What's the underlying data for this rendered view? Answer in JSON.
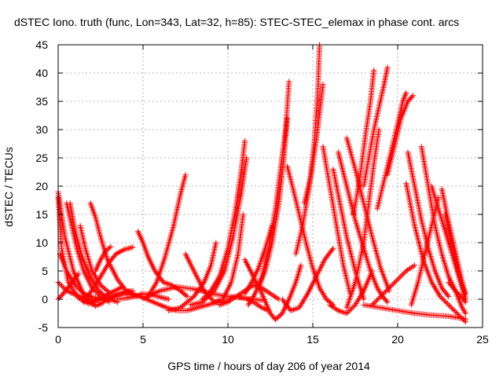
{
  "chart_data": {
    "type": "scatter",
    "title": "dSTEC Iono. truth (func, Lon=343, Lat=32, h=85): STEC-STEC_elemax in phase cont. arcs",
    "xlabel": "GPS time / hours of day 206 of year 2014",
    "ylabel": "dSTEC  / TECUs",
    "xlim": [
      0,
      25
    ],
    "ylim": [
      -5,
      45
    ],
    "x_ticks": [
      0,
      5,
      10,
      15,
      20,
      25
    ],
    "y_ticks": [
      -5,
      0,
      5,
      10,
      15,
      20,
      25,
      30,
      35,
      40,
      45
    ],
    "grid": true,
    "marker": "+",
    "color": "#ff0000",
    "series": [
      {
        "x": [
          0.0,
          0.4,
          0.9,
          1.4,
          1.8,
          2.2,
          2.6,
          3.0
        ],
        "y": [
          19,
          11,
          5,
          1.5,
          -0.5,
          -1.2,
          -0.7,
          0.5
        ]
      },
      {
        "x": [
          0.0,
          0.2,
          0.6,
          1.2,
          1.8,
          2.5,
          3.2,
          3.8
        ],
        "y": [
          18,
          9,
          3,
          0.2,
          -0.8,
          0.2,
          1.3,
          2.2
        ]
      },
      {
        "x": [
          0.1,
          0.5,
          1.0,
          1.5,
          2.0,
          2.6,
          3.2,
          3.8,
          4.4
        ],
        "y": [
          8,
          5,
          2.5,
          1,
          0.4,
          0.2,
          0.5,
          1.0,
          1.5
        ]
      },
      {
        "x": [
          0.0,
          0.5,
          1.0,
          1.6,
          2.2,
          2.9,
          3.6,
          4.2
        ],
        "y": [
          3,
          1.5,
          0.8,
          0.2,
          -0.3,
          0.1,
          0.9,
          1.5
        ]
      },
      {
        "x": [
          0.0,
          0.3,
          0.7,
          1.2
        ],
        "y": [
          0,
          1,
          2.5,
          4.5
        ]
      },
      {
        "x": [
          0.5,
          0.8,
          1.1,
          1.5,
          2.0,
          2.5,
          3.0
        ],
        "y": [
          17,
          13,
          9,
          5,
          2,
          0.5,
          -0.5
        ]
      },
      {
        "x": [
          0.7,
          1.0,
          1.4,
          1.9,
          2.4,
          2.9,
          3.5
        ],
        "y": [
          17,
          12,
          7.5,
          4,
          1.5,
          0.2,
          -0.5
        ]
      },
      {
        "x": [
          1.3,
          1.6,
          2.0,
          2.5,
          3.0
        ],
        "y": [
          13,
          9,
          5,
          2.5,
          1.2
        ]
      },
      {
        "x": [
          1.9,
          2.2,
          2.5,
          2.9,
          3.5,
          4.0,
          4.5
        ],
        "y": [
          17,
          14.5,
          11,
          7,
          3.5,
          1.5,
          0.8
        ]
      },
      {
        "x": [
          1.5,
          1.8,
          2.2,
          2.6,
          3.0,
          3.4,
          3.9,
          4.4
        ],
        "y": [
          -0.5,
          0.8,
          2.5,
          4.5,
          6.5,
          8,
          8.8,
          9.2
        ]
      },
      {
        "x": [
          2.2,
          2.5,
          2.8,
          3.1
        ],
        "y": [
          5,
          7,
          8.5,
          9.3
        ]
      },
      {
        "x": [
          4.7,
          5.0,
          5.3,
          5.7,
          6.2,
          6.7,
          7.2,
          7.6
        ],
        "y": [
          12,
          10,
          7.5,
          5,
          3,
          2.5,
          1.5,
          0.5
        ]
      },
      {
        "x": [
          5.3,
          5.8,
          6.3,
          6.8,
          7.2,
          7.5
        ],
        "y": [
          0.5,
          3,
          7.5,
          13,
          18.5,
          22
        ]
      },
      {
        "x": [
          3.5,
          4.0,
          4.5,
          5.0,
          5.5,
          6.0,
          6.5
        ],
        "y": [
          0,
          0.2,
          0.5,
          1,
          0.8,
          0.4,
          0
        ]
      },
      {
        "x": [
          4.0,
          4.8,
          5.6,
          6.4,
          7.0,
          7.6,
          8.2,
          8.8,
          9.4,
          10.0
        ],
        "y": [
          1,
          0.5,
          -0.5,
          -1.5,
          -2,
          -2,
          -1.5,
          -1,
          -0.5,
          -0.3
        ]
      },
      {
        "x": [
          5.0,
          6.0,
          7.0,
          8.0,
          9.0,
          10.0,
          11.0,
          12.0
        ],
        "y": [
          0.2,
          1.5,
          2.2,
          1.8,
          1,
          0.5,
          0.2,
          -0.2
        ]
      },
      {
        "x": [
          6.5,
          7.2,
          8.0,
          8.6,
          9.0,
          9.3
        ],
        "y": [
          -2,
          -1.5,
          0.5,
          3,
          6,
          10
        ]
      },
      {
        "x": [
          7.5,
          8.0,
          8.6,
          9.2,
          9.7,
          10.2,
          10.6,
          10.9
        ],
        "y": [
          8,
          5,
          1.5,
          -0.5,
          0,
          3,
          8,
          15
        ]
      },
      {
        "x": [
          7.8,
          8.5,
          9.2,
          9.8,
          10.3,
          10.8,
          11.1
        ],
        "y": [
          -1,
          -0.5,
          1.5,
          5,
          11,
          19,
          25
        ]
      },
      {
        "x": [
          8.5,
          9.0,
          9.5,
          10.0,
          10.4,
          10.8,
          11.0
        ],
        "y": [
          0,
          1.5,
          4,
          9,
          15,
          23,
          28
        ]
      },
      {
        "x": [
          9.5,
          10.0,
          10.5,
          11.0,
          11.5,
          12.0,
          12.5,
          13.0
        ],
        "y": [
          -1,
          -0.5,
          0.5,
          1.5,
          2.5,
          2,
          1,
          0
        ]
      },
      {
        "x": [
          10.0,
          10.5,
          11.0,
          11.5,
          12.0,
          12.4
        ],
        "y": [
          0,
          0.5,
          0.2,
          -0.5,
          -1.5,
          -2
        ]
      },
      {
        "x": [
          11.0,
          11.4,
          11.8,
          12.2,
          12.6
        ],
        "y": [
          1,
          3,
          5.5,
          9,
          13
        ]
      },
      {
        "x": [
          11.2,
          11.6,
          12.0,
          12.4,
          12.8,
          13.1,
          13.4,
          13.6
        ],
        "y": [
          -1,
          1,
          4,
          9,
          16,
          23,
          30,
          38.5
        ]
      },
      {
        "x": [
          11.8,
          12.2,
          12.6,
          13.0,
          13.3,
          13.5
        ],
        "y": [
          2,
          5,
          10,
          17,
          25,
          32
        ]
      },
      {
        "x": [
          11.0,
          11.5,
          12.0,
          12.5,
          12.8,
          13.2,
          13.6,
          14.0,
          14.3
        ],
        "y": [
          7,
          4,
          1,
          -2.5,
          -3.6,
          -2.5,
          0,
          3,
          6
        ]
      },
      {
        "x": [
          13.5,
          13.8,
          14.2,
          14.6,
          15.0,
          15.4,
          15.8,
          16.2
        ],
        "y": [
          23.5,
          20,
          15,
          10,
          5.5,
          2,
          0,
          -1
        ]
      },
      {
        "x": [
          13.2,
          13.7,
          14.2,
          14.7,
          15.2,
          15.7,
          16.2
        ],
        "y": [
          0,
          -2,
          -1.5,
          1,
          4,
          7,
          9
        ]
      },
      {
        "x": [
          14.0,
          14.4,
          14.8,
          15.1,
          15.3,
          15.4
        ],
        "y": [
          8,
          13,
          20,
          28,
          37,
          45
        ]
      },
      {
        "x": [
          14.5,
          14.9,
          15.2,
          15.4,
          15.6
        ],
        "y": [
          17,
          22,
          28,
          33,
          38
        ]
      },
      {
        "x": [
          15.6,
          16.0,
          16.4,
          16.8,
          17.2
        ],
        "y": [
          27,
          20,
          13,
          6,
          1
        ]
      },
      {
        "x": [
          16.2,
          16.6,
          17.0,
          17.5,
          18.0
        ],
        "y": [
          23,
          17,
          11,
          5,
          0
        ]
      },
      {
        "x": [
          16.0,
          16.5,
          17.0,
          17.5,
          18.0,
          18.5
        ],
        "y": [
          -1,
          -2,
          -2.5,
          -1,
          1.5,
          5
        ]
      },
      {
        "x": [
          16.5,
          17.0,
          17.5,
          18.0,
          18.4,
          18.8,
          19.1,
          19.4
        ],
        "y": [
          26,
          20,
          14,
          9,
          5,
          2,
          0.5,
          -0.5
        ]
      },
      {
        "x": [
          17.0,
          17.5,
          18.0,
          18.5,
          19.0,
          19.5
        ],
        "y": [
          28.5,
          23,
          17,
          11,
          5.5,
          1.5
        ]
      },
      {
        "x": [
          17.4,
          17.8,
          18.1,
          18.4,
          18.6
        ],
        "y": [
          15,
          22,
          29,
          35,
          40.5
        ]
      },
      {
        "x": [
          18.0,
          18.3,
          18.6,
          18.9,
          19.2,
          19.4
        ],
        "y": [
          20,
          25,
          30,
          34,
          38,
          41
        ]
      },
      {
        "x": [
          17.0,
          17.5,
          18.0,
          18.3,
          18.6,
          18.9
        ],
        "y": [
          -1.5,
          3,
          10,
          17,
          24,
          30
        ]
      },
      {
        "x": [
          18.8,
          19.2,
          19.6,
          20.0,
          20.3,
          20.5
        ],
        "y": [
          16,
          21,
          26,
          31,
          35,
          36.5
        ]
      },
      {
        "x": [
          19.4,
          19.8,
          20.2,
          20.6,
          20.9
        ],
        "y": [
          22,
          27,
          32,
          35,
          36
        ]
      },
      {
        "x": [
          18.0,
          19.0,
          20.0,
          21.0,
          22.0,
          23.0,
          24.0
        ],
        "y": [
          -1,
          -1.5,
          -2,
          -2.5,
          -2.8,
          -3,
          -3.5
        ]
      },
      {
        "x": [
          18.5,
          19.0,
          19.5,
          20.0,
          20.5,
          21.0
        ],
        "y": [
          -1,
          0.5,
          2,
          3.5,
          5,
          6
        ]
      },
      {
        "x": [
          20.6,
          21.0,
          21.4,
          21.8,
          22.2,
          22.6,
          23.0
        ],
        "y": [
          26,
          20,
          14,
          9,
          5,
          2,
          0.5
        ]
      },
      {
        "x": [
          21.4,
          21.8,
          22.2,
          22.6,
          23.0,
          23.4,
          23.8,
          24.0
        ],
        "y": [
          27,
          20,
          13,
          8,
          4,
          1.5,
          -1.5,
          -2.5
        ]
      },
      {
        "x": [
          22.0,
          22.4,
          22.8,
          23.2,
          23.6,
          24.0
        ],
        "y": [
          20,
          16,
          12,
          8,
          4,
          0
        ]
      },
      {
        "x": [
          22.6,
          22.9,
          23.2,
          23.5,
          23.8,
          24.0
        ],
        "y": [
          19.5,
          15,
          11,
          7,
          3,
          0
        ]
      },
      {
        "x": [
          22.8,
          23.1,
          23.4,
          23.7,
          24.0
        ],
        "y": [
          15,
          11,
          7,
          3.5,
          1
        ]
      },
      {
        "x": [
          20.5,
          21.0,
          21.5,
          22.0,
          22.5,
          23.0,
          23.5,
          24.0
        ],
        "y": [
          20.5,
          13,
          7,
          3,
          0.5,
          -1,
          -2.5,
          -4
        ]
      },
      {
        "x": [
          20.8,
          21.2,
          21.6,
          22.0,
          22.4
        ],
        "y": [
          -1,
          3,
          8,
          13,
          18
        ]
      },
      {
        "x": [
          23.0,
          23.4,
          23.8,
          24.0
        ],
        "y": [
          3,
          1.5,
          0.3,
          -0.5
        ]
      }
    ]
  }
}
